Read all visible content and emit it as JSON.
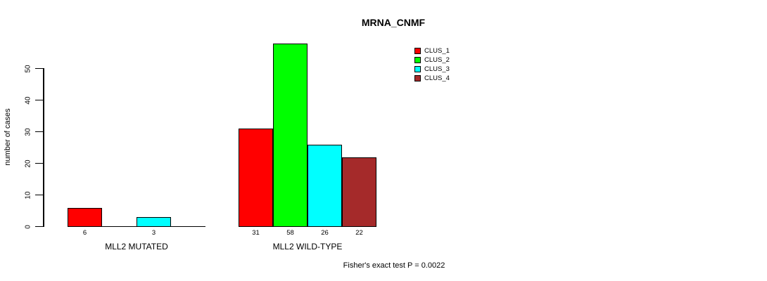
{
  "chart_data": {
    "type": "bar",
    "title": "MRNA_CNMF",
    "ylabel": "number of cases",
    "xlabel": "",
    "ylim": [
      0,
      58
    ],
    "yticks": [
      0,
      10,
      20,
      30,
      40,
      50
    ],
    "grid": false,
    "legend_position": "top-right",
    "categories": [
      "MLL2 MUTATED",
      "MLL2 WILD-TYPE"
    ],
    "series": [
      {
        "name": "CLUS_1",
        "color": "#ff0000",
        "values": [
          6,
          31
        ]
      },
      {
        "name": "CLUS_2",
        "color": "#00ff00",
        "values": [
          0,
          58
        ]
      },
      {
        "name": "CLUS_3",
        "color": "#00ffff",
        "values": [
          3,
          26
        ]
      },
      {
        "name": "CLUS_4",
        "color": "#a52a2a",
        "values": [
          0,
          22
        ]
      }
    ],
    "bar_value_labels": [
      [
        "6",
        "",
        "3",
        ""
      ],
      [
        "31",
        "58",
        "26",
        "22"
      ]
    ],
    "annotation": "Fisher's exact test P = 0.0022"
  }
}
